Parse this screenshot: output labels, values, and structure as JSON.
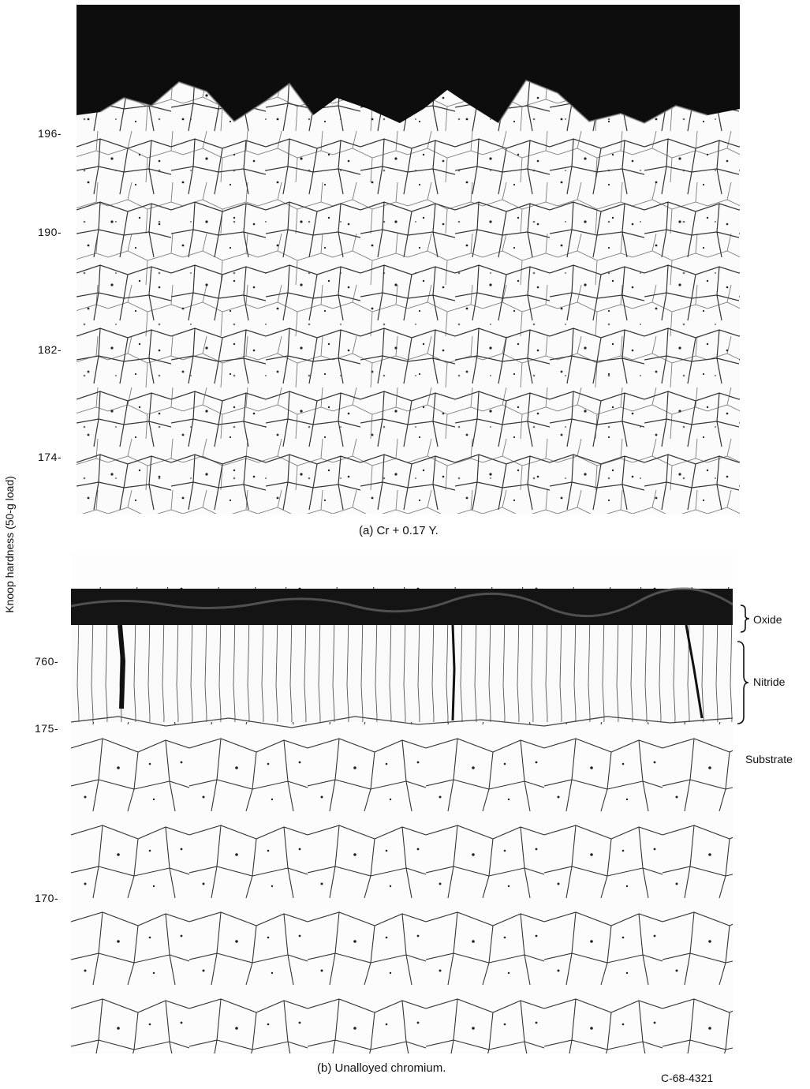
{
  "axis_title": "Knoop hardness (50-g load)",
  "panel_a": {
    "caption": "(a) Cr + 0.17 Y.",
    "hardness_ticks": [
      "196-",
      "190-",
      "182-",
      "174-"
    ]
  },
  "panel_b": {
    "caption": "(b) Unalloyed chromium.",
    "hardness_ticks": [
      "760-",
      "175-",
      "170-"
    ],
    "layers": {
      "oxide": "Oxide",
      "nitride": "Nitride",
      "substrate": "Substrate"
    }
  },
  "figure_id": "C-68-4321"
}
